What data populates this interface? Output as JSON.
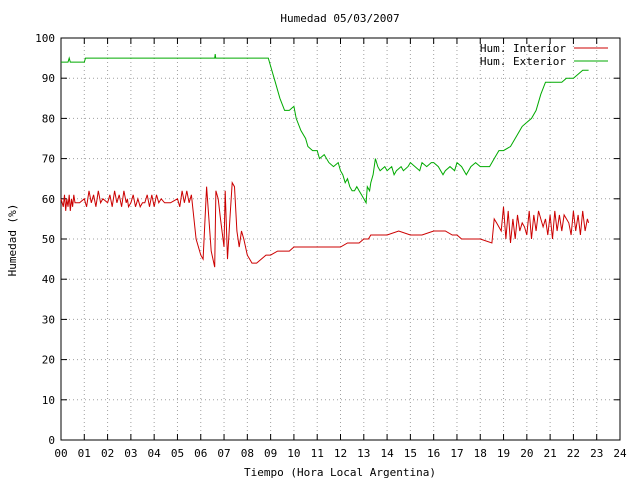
{
  "chart_data": {
    "type": "line",
    "title": "Humedad 05/03/2007",
    "xlabel": "Tiempo (Hora Local Argentina)",
    "ylabel": "Humedad (%)",
    "xlim": [
      0,
      24
    ],
    "ylim": [
      0,
      100
    ],
    "x_ticks": [
      "00",
      "01",
      "02",
      "03",
      "04",
      "05",
      "06",
      "07",
      "08",
      "09",
      "10",
      "11",
      "12",
      "13",
      "14",
      "15",
      "16",
      "17",
      "18",
      "19",
      "20",
      "21",
      "22",
      "23",
      "24"
    ],
    "y_ticks": [
      "0",
      "10",
      "20",
      "30",
      "40",
      "50",
      "60",
      "70",
      "80",
      "90",
      "100"
    ],
    "grid": true,
    "legend_position": "top-right",
    "series": [
      {
        "name": "Hum. Interior",
        "color": "#cc0000",
        "points": [
          [
            0.0,
            60
          ],
          [
            0.1,
            58
          ],
          [
            0.15,
            61
          ],
          [
            0.2,
            57
          ],
          [
            0.25,
            60
          ],
          [
            0.3,
            58
          ],
          [
            0.35,
            61
          ],
          [
            0.4,
            57
          ],
          [
            0.45,
            60
          ],
          [
            0.5,
            58
          ],
          [
            0.55,
            61
          ],
          [
            0.6,
            59
          ],
          [
            0.8,
            59
          ],
          [
            1.0,
            60
          ],
          [
            1.1,
            58
          ],
          [
            1.2,
            62
          ],
          [
            1.3,
            59
          ],
          [
            1.4,
            61
          ],
          [
            1.5,
            58
          ],
          [
            1.6,
            62
          ],
          [
            1.7,
            59
          ],
          [
            1.8,
            60
          ],
          [
            2.0,
            59
          ],
          [
            2.1,
            61
          ],
          [
            2.2,
            58
          ],
          [
            2.3,
            62
          ],
          [
            2.4,
            59
          ],
          [
            2.5,
            61
          ],
          [
            2.6,
            58
          ],
          [
            2.7,
            62
          ],
          [
            2.8,
            59
          ],
          [
            2.85,
            60
          ],
          [
            2.9,
            58
          ],
          [
            3.0,
            59
          ],
          [
            3.1,
            61
          ],
          [
            3.2,
            58
          ],
          [
            3.3,
            60
          ],
          [
            3.4,
            58
          ],
          [
            3.5,
            59
          ],
          [
            3.6,
            59
          ],
          [
            3.7,
            61
          ],
          [
            3.8,
            58
          ],
          [
            3.9,
            61
          ],
          [
            4.0,
            58
          ],
          [
            4.1,
            61
          ],
          [
            4.2,
            59
          ],
          [
            4.3,
            60
          ],
          [
            4.45,
            59
          ],
          [
            4.7,
            59
          ],
          [
            5.0,
            60
          ],
          [
            5.1,
            58
          ],
          [
            5.2,
            62
          ],
          [
            5.3,
            59
          ],
          [
            5.4,
            62
          ],
          [
            5.5,
            59
          ],
          [
            5.6,
            61
          ],
          [
            5.8,
            50
          ],
          [
            6.0,
            46
          ],
          [
            6.1,
            45
          ],
          [
            6.25,
            63
          ],
          [
            6.35,
            55
          ],
          [
            6.45,
            47
          ],
          [
            6.6,
            43
          ],
          [
            6.65,
            62
          ],
          [
            6.75,
            60
          ],
          [
            6.85,
            55
          ],
          [
            7.0,
            48
          ],
          [
            7.05,
            62
          ],
          [
            7.15,
            45
          ],
          [
            7.25,
            55
          ],
          [
            7.35,
            64
          ],
          [
            7.45,
            63
          ],
          [
            7.55,
            52
          ],
          [
            7.65,
            48
          ],
          [
            7.75,
            52
          ],
          [
            7.85,
            50
          ],
          [
            8.0,
            46
          ],
          [
            8.2,
            44
          ],
          [
            8.4,
            44
          ],
          [
            8.6,
            45
          ],
          [
            8.8,
            46
          ],
          [
            9.0,
            46
          ],
          [
            9.3,
            47
          ],
          [
            9.8,
            47
          ],
          [
            10.0,
            48
          ],
          [
            10.5,
            48
          ],
          [
            11.0,
            48
          ],
          [
            11.5,
            48
          ],
          [
            12.0,
            48
          ],
          [
            12.3,
            49
          ],
          [
            12.8,
            49
          ],
          [
            13.0,
            50
          ],
          [
            13.2,
            50
          ],
          [
            13.3,
            51
          ],
          [
            13.5,
            51
          ],
          [
            14.0,
            51
          ],
          [
            14.5,
            52
          ],
          [
            15.0,
            51
          ],
          [
            15.5,
            51
          ],
          [
            16.0,
            52
          ],
          [
            16.5,
            52
          ],
          [
            16.8,
            51
          ],
          [
            17.0,
            51
          ],
          [
            17.2,
            50
          ],
          [
            18.0,
            50
          ],
          [
            18.5,
            49
          ],
          [
            18.6,
            55
          ],
          [
            18.7,
            54
          ],
          [
            18.9,
            52
          ],
          [
            19.0,
            58
          ],
          [
            19.1,
            50
          ],
          [
            19.2,
            57
          ],
          [
            19.3,
            49
          ],
          [
            19.4,
            55
          ],
          [
            19.5,
            50
          ],
          [
            19.6,
            56
          ],
          [
            19.7,
            52
          ],
          [
            19.8,
            54
          ],
          [
            19.9,
            53
          ],
          [
            20.0,
            51
          ],
          [
            20.1,
            57
          ],
          [
            20.2,
            50
          ],
          [
            20.3,
            56
          ],
          [
            20.4,
            52
          ],
          [
            20.5,
            57
          ],
          [
            20.7,
            53
          ],
          [
            20.8,
            55
          ],
          [
            20.9,
            51
          ],
          [
            21.0,
            56
          ],
          [
            21.1,
            50
          ],
          [
            21.2,
            57
          ],
          [
            21.3,
            52
          ],
          [
            21.4,
            56
          ],
          [
            21.5,
            52
          ],
          [
            21.6,
            56
          ],
          [
            21.8,
            54
          ],
          [
            21.9,
            51
          ],
          [
            22.0,
            57
          ],
          [
            22.1,
            52
          ],
          [
            22.2,
            56
          ],
          [
            22.3,
            51
          ],
          [
            22.4,
            57
          ],
          [
            22.5,
            52
          ],
          [
            22.6,
            55
          ],
          [
            22.65,
            54
          ]
        ]
      },
      {
        "name": "Hum. Exterior",
        "color": "#00aa00",
        "points": [
          [
            0.0,
            94
          ],
          [
            0.3,
            94
          ],
          [
            0.35,
            95
          ],
          [
            0.4,
            94
          ],
          [
            0.8,
            94
          ],
          [
            1.0,
            94
          ],
          [
            1.05,
            95
          ],
          [
            1.3,
            95
          ],
          [
            2.0,
            95
          ],
          [
            3.0,
            95
          ],
          [
            4.0,
            95
          ],
          [
            5.0,
            95
          ],
          [
            6.0,
            95
          ],
          [
            6.6,
            95
          ],
          [
            6.62,
            96
          ],
          [
            6.64,
            95
          ],
          [
            7.0,
            95
          ],
          [
            8.0,
            95
          ],
          [
            8.5,
            95
          ],
          [
            8.9,
            95
          ],
          [
            9.0,
            93
          ],
          [
            9.2,
            89
          ],
          [
            9.4,
            85
          ],
          [
            9.6,
            82
          ],
          [
            9.8,
            82
          ],
          [
            10.0,
            83
          ],
          [
            10.1,
            80
          ],
          [
            10.3,
            77
          ],
          [
            10.5,
            75
          ],
          [
            10.6,
            73
          ],
          [
            10.8,
            72
          ],
          [
            11.0,
            72
          ],
          [
            11.1,
            70
          ],
          [
            11.3,
            71
          ],
          [
            11.5,
            69
          ],
          [
            11.7,
            68
          ],
          [
            11.9,
            69
          ],
          [
            12.0,
            67
          ],
          [
            12.1,
            66
          ],
          [
            12.2,
            64
          ],
          [
            12.3,
            65
          ],
          [
            12.4,
            63
          ],
          [
            12.5,
            62
          ],
          [
            12.6,
            62
          ],
          [
            12.7,
            63
          ],
          [
            12.8,
            62
          ],
          [
            12.9,
            61
          ],
          [
            13.0,
            60
          ],
          [
            13.1,
            59
          ],
          [
            13.15,
            63
          ],
          [
            13.25,
            62
          ],
          [
            13.3,
            64
          ],
          [
            13.4,
            66
          ],
          [
            13.5,
            70
          ],
          [
            13.6,
            68
          ],
          [
            13.7,
            67
          ],
          [
            13.9,
            68
          ],
          [
            14.0,
            67
          ],
          [
            14.2,
            68
          ],
          [
            14.3,
            66
          ],
          [
            14.4,
            67
          ],
          [
            14.6,
            68
          ],
          [
            14.7,
            67
          ],
          [
            14.9,
            68
          ],
          [
            15.0,
            69
          ],
          [
            15.2,
            68
          ],
          [
            15.4,
            67
          ],
          [
            15.5,
            69
          ],
          [
            15.7,
            68
          ],
          [
            15.9,
            69
          ],
          [
            16.0,
            69
          ],
          [
            16.2,
            68
          ],
          [
            16.4,
            66
          ],
          [
            16.5,
            67
          ],
          [
            16.7,
            68
          ],
          [
            16.9,
            67
          ],
          [
            17.0,
            69
          ],
          [
            17.2,
            68
          ],
          [
            17.4,
            66
          ],
          [
            17.6,
            68
          ],
          [
            17.8,
            69
          ],
          [
            18.0,
            68
          ],
          [
            18.4,
            68
          ],
          [
            18.6,
            70
          ],
          [
            18.8,
            72
          ],
          [
            19.0,
            72
          ],
          [
            19.3,
            73
          ],
          [
            19.6,
            76
          ],
          [
            19.8,
            78
          ],
          [
            20.0,
            79
          ],
          [
            20.2,
            80
          ],
          [
            20.4,
            82
          ],
          [
            20.6,
            86
          ],
          [
            20.8,
            89
          ],
          [
            21.0,
            89
          ],
          [
            21.3,
            89
          ],
          [
            21.5,
            89
          ],
          [
            21.7,
            90
          ],
          [
            21.9,
            90
          ],
          [
            22.0,
            90
          ],
          [
            22.2,
            91
          ],
          [
            22.4,
            92
          ],
          [
            22.65,
            92
          ]
        ]
      }
    ]
  }
}
